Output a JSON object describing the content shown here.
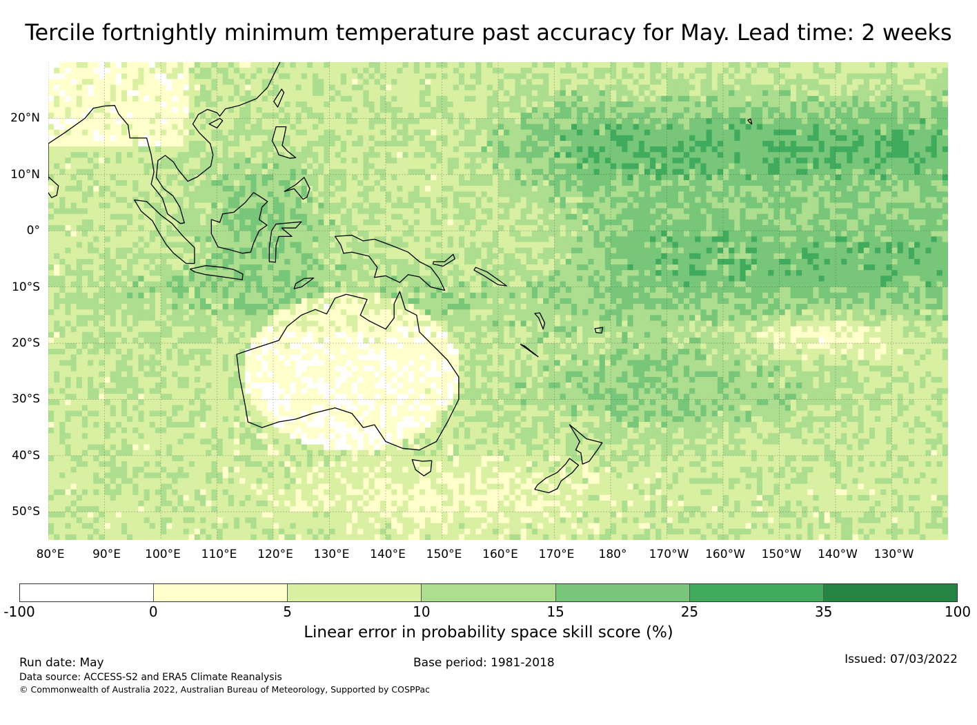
{
  "title": "Tercile fortnightly minimum temperature past accuracy for May. Lead time: 2 weeks",
  "map": {
    "lat_labels": [
      "20°N",
      "10°N",
      "0°",
      "10°S",
      "20°S",
      "30°S",
      "40°S",
      "50°S"
    ],
    "lon_labels": [
      "80°E",
      "90°E",
      "100°E",
      "110°E",
      "120°E",
      "130°E",
      "140°E",
      "150°E",
      "160°E",
      "170°E",
      "180°",
      "170°W",
      "160°W",
      "150°W",
      "140°W",
      "130°W"
    ],
    "extent": {
      "lon_min": 80,
      "lon_max": 240,
      "lat_min": -55,
      "lat_max": 30
    },
    "gridlines": true,
    "coastlines": true
  },
  "colorbar": {
    "label": "Linear error in probability space skill score (%)",
    "ticks": [
      "-100",
      "0",
      "5",
      "10",
      "15",
      "25",
      "35",
      "100"
    ],
    "colors": [
      "#ffffff",
      "#ffffcc",
      "#d9f0a3",
      "#addd8e",
      "#78c679",
      "#41ab5d",
      "#238443"
    ]
  },
  "footer": {
    "run_date": "Run date: May",
    "base_period": "Base period: 1981-2018",
    "issued": "Issued: 07/03/2022",
    "data_source": "Data source: ACCESS-S2 and ERA5 Climate Reanalysis",
    "copyright": "© Commonwealth of Australia 2022, Australian Bureau of Meteorology, Supported by COSPPac"
  }
}
